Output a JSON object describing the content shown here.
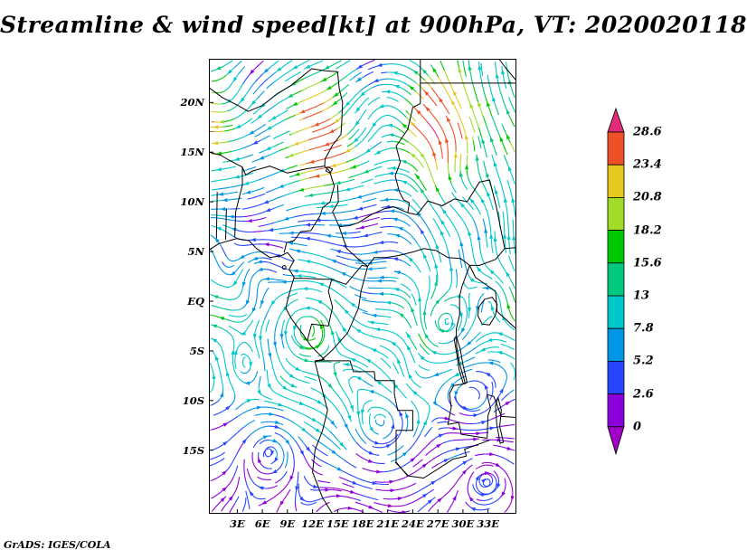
{
  "title": "Streamline & wind speed[kt] at 900hPa, VT: 2020020118",
  "watermark": "GrADS: IGES/COLA",
  "chart_data": {
    "type": "streamline",
    "variable": "wind speed",
    "units": "kt",
    "level": "900hPa",
    "valid_time": "2020020118",
    "region": "West and Central Africa",
    "lon_range": [
      -0.4,
      36.4
    ],
    "lat_range": [
      -21.4,
      24.4
    ],
    "grid": false,
    "x_ticks": [
      {
        "label": "3E",
        "lon": 3
      },
      {
        "label": "6E",
        "lon": 6
      },
      {
        "label": "9E",
        "lon": 9
      },
      {
        "label": "12E",
        "lon": 12
      },
      {
        "label": "15E",
        "lon": 15
      },
      {
        "label": "18E",
        "lon": 18
      },
      {
        "label": "21E",
        "lon": 21
      },
      {
        "label": "24E",
        "lon": 24
      },
      {
        "label": "27E",
        "lon": 27
      },
      {
        "label": "30E",
        "lon": 30
      },
      {
        "label": "33E",
        "lon": 33
      }
    ],
    "y_ticks": [
      {
        "label": "20N",
        "lat": 20
      },
      {
        "label": "15N",
        "lat": 15
      },
      {
        "label": "10N",
        "lat": 10
      },
      {
        "label": "5N",
        "lat": 5
      },
      {
        "label": "EQ",
        "lat": 0
      },
      {
        "label": "5S",
        "lat": -5
      },
      {
        "label": "10S",
        "lat": -10
      },
      {
        "label": "15S",
        "lat": -15
      }
    ],
    "colorbar": {
      "position": "right",
      "labels_top_to_bottom": [
        "28.6",
        "23.4",
        "20.8",
        "18.2",
        "15.6",
        "13",
        "7.8",
        "5.2",
        "2.6",
        "0"
      ],
      "thresholds": [
        0,
        2.6,
        5.2,
        7.8,
        13,
        15.6,
        18.2,
        20.8,
        23.4,
        28.6
      ],
      "band_colors_low_to_high": [
        "#8c00dc",
        "#2846ff",
        "#0096e6",
        "#00c8c8",
        "#00c87d",
        "#00c800",
        "#a0dc28",
        "#e6c81e",
        "#f05028"
      ],
      "below_color": "#a000c8",
      "above_color": "#e12c78"
    },
    "flow_features": {
      "north_of_10N": "fast northeasterly harmattan flow, 15-28 kt (yellow/orange/red)",
      "near_equator": "moderate easterly flow, 8-13 kt (cyan/teal)",
      "south_of_equator": "weak variable flow with closed eddies, 0-8 kt (purple/blue)",
      "northeast_corner": "strong flow turning north, 13-18 kt (green/cyan)"
    }
  }
}
